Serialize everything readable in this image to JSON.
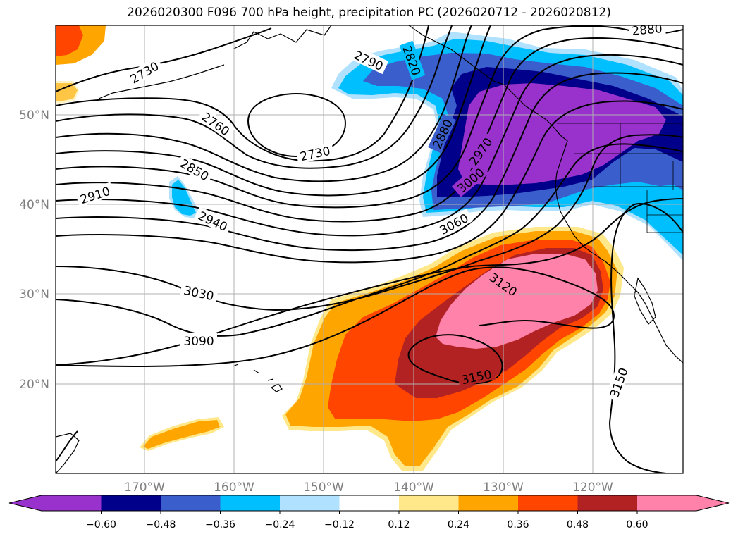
{
  "title": "2026020300 F096 700 hPa height, precipitation PC (2026020712 - 2026020812)",
  "map": {
    "lon_labels": [
      "170°W",
      "160°W",
      "150°W",
      "140°W",
      "130°W",
      "120°W"
    ],
    "lat_labels": [
      "50°N",
      "40°N",
      "30°N",
      "20°N"
    ],
    "contour_labels": {
      "c2730a": "2730",
      "c2730b": "2730",
      "c2760": "2760",
      "c2790": "2790",
      "c2820": "2820",
      "c2850": "2850",
      "c2880a": "2880",
      "c2880b": "2880",
      "c2910": "2910",
      "c2940": "2940",
      "c2970": "2970",
      "c3000": "3000",
      "c3030": "3030",
      "c3060": "3060",
      "c3090": "3090",
      "c3120": "3120",
      "c3150a": "3150",
      "c3150b": "3150"
    },
    "colors": {
      "neg_strong": "#9932cc",
      "neg_navy": "#00008b",
      "neg_royal": "#3a5fcd",
      "neg_sky": "#00bfff",
      "neg_light": "#b0e2ff",
      "pos_light": "#ffe88a",
      "pos_orange": "#ffa500",
      "pos_redorange": "#ff4500",
      "pos_darkred": "#b22222",
      "pos_pink": "#ff82ab"
    }
  },
  "colorbar": {
    "tick_labels": [
      "−0.60",
      "−0.48",
      "−0.36",
      "−0.24",
      "−0.12",
      "0.12",
      "0.24",
      "0.36",
      "0.48",
      "0.60"
    ],
    "segment_colors": [
      "#9932cc",
      "#00008b",
      "#3a5fcd",
      "#00bfff",
      "#b0e2ff",
      "#ffffff",
      "#ffe88a",
      "#ffa500",
      "#ff4500",
      "#b22222",
      "#ff82ab"
    ]
  }
}
